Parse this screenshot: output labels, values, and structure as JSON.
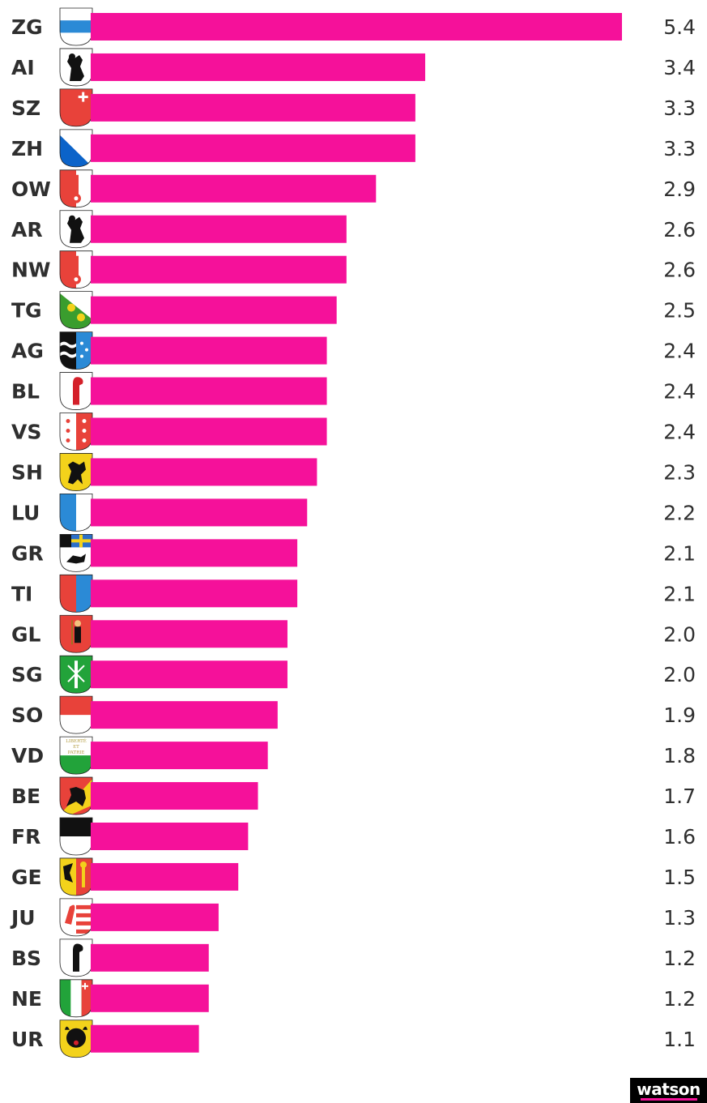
{
  "chart_data": {
    "type": "bar",
    "orientation": "horizontal",
    "categories": [
      "ZG",
      "AI",
      "SZ",
      "ZH",
      "OW",
      "AR",
      "NW",
      "TG",
      "AG",
      "BL",
      "VS",
      "SH",
      "LU",
      "GR",
      "TI",
      "GL",
      "SG",
      "SO",
      "VD",
      "BE",
      "FR",
      "GE",
      "JU",
      "BS",
      "NE",
      "UR"
    ],
    "values": [
      5.4,
      3.4,
      3.3,
      3.3,
      2.9,
      2.6,
      2.6,
      2.5,
      2.4,
      2.4,
      2.4,
      2.3,
      2.2,
      2.1,
      2.1,
      2.0,
      2.0,
      1.9,
      1.8,
      1.7,
      1.6,
      1.5,
      1.3,
      1.2,
      1.2,
      1.1
    ],
    "value_labels": [
      "5.4",
      "3.4",
      "3.3",
      "3.3",
      "2.9",
      "2.6",
      "2.6",
      "2.5",
      "2.4",
      "2.4",
      "2.4",
      "2.3",
      "2.2",
      "2.1",
      "2.1",
      "2.0",
      "2.0",
      "1.9",
      "1.8",
      "1.7",
      "1.6",
      "1.5",
      "1.3",
      "1.2",
      "1.2",
      "1.1"
    ],
    "xlim": [
      0,
      5.4
    ],
    "bar_color": "#f5119a",
    "grid": false,
    "legend": "none"
  },
  "crests": {
    "ZG": {
      "icon": "zug-crest-icon",
      "type": "fess",
      "c1": "#ffffff",
      "c2": "#2b8ad6"
    },
    "AI": {
      "icon": "appenzell-innerrhoden-crest-icon",
      "type": "bear",
      "c1": "#ffffff",
      "c2": "#111111"
    },
    "SZ": {
      "icon": "schwyz-crest-icon",
      "type": "cornercross",
      "c1": "#e8423a",
      "c2": "#ffffff"
    },
    "ZH": {
      "icon": "zurich-crest-icon",
      "type": "diag",
      "c1": "#ffffff",
      "c2": "#0b63c9"
    },
    "OW": {
      "icon": "obwalden-crest-icon",
      "type": "key",
      "c1": "#e8423a",
      "c2": "#ffffff"
    },
    "AR": {
      "icon": "appenzell-ausserrhoden-crest-icon",
      "type": "bear",
      "c1": "#ffffff",
      "c2": "#111111"
    },
    "NW": {
      "icon": "nidwalden-crest-icon",
      "type": "key",
      "c1": "#e8423a",
      "c2": "#ffffff"
    },
    "TG": {
      "icon": "thurgau-crest-icon",
      "type": "diaglions",
      "c1": "#ffffff",
      "c2": "#3a9d2e",
      "c3": "#f3d21b"
    },
    "AG": {
      "icon": "aargau-crest-icon",
      "type": "aargau",
      "c1": "#111111",
      "c2": "#2b8ad6"
    },
    "BL": {
      "icon": "basel-land-crest-icon",
      "type": "staff",
      "c1": "#ffffff",
      "c2": "#d4202a"
    },
    "VS": {
      "icon": "valais-crest-icon",
      "type": "stars",
      "c1": "#ffffff",
      "c2": "#e8423a"
    },
    "SH": {
      "icon": "schaffhausen-crest-icon",
      "type": "ram",
      "c1": "#f3d21b",
      "c2": "#111111"
    },
    "LU": {
      "icon": "lucerne-crest-icon",
      "type": "vsplit",
      "c1": "#2b8ad6",
      "c2": "#ffffff"
    },
    "GR": {
      "icon": "graubuenden-crest-icon",
      "type": "grisons",
      "c1": "#ffffff",
      "c2": "#111111",
      "c3": "#2b6fc9",
      "c4": "#f3d21b"
    },
    "TI": {
      "icon": "ticino-crest-icon",
      "type": "vsplit",
      "c1": "#e8423a",
      "c2": "#2b8ad6"
    },
    "GL": {
      "icon": "glarus-crest-icon",
      "type": "saint",
      "c1": "#e8423a",
      "c2": "#111111"
    },
    "SG": {
      "icon": "st-gallen-crest-icon",
      "type": "fasces",
      "c1": "#22a33a",
      "c2": "#ffffff"
    },
    "SO": {
      "icon": "solothurn-crest-icon",
      "type": "hsplit",
      "c1": "#e8423a",
      "c2": "#ffffff"
    },
    "VD": {
      "icon": "vaud-crest-icon",
      "type": "vaud",
      "c1": "#ffffff",
      "c2": "#22a33a",
      "c3": "#b29a3e"
    },
    "BE": {
      "icon": "bern-crest-icon",
      "type": "bern",
      "c1": "#e8423a",
      "c2": "#f3d21b",
      "c3": "#111111"
    },
    "FR": {
      "icon": "fribourg-crest-icon",
      "type": "hsplit",
      "c1": "#111111",
      "c2": "#ffffff"
    },
    "GE": {
      "icon": "geneva-crest-icon",
      "type": "geneva",
      "c1": "#f3d21b",
      "c2": "#e8423a",
      "c3": "#111111"
    },
    "JU": {
      "icon": "jura-crest-icon",
      "type": "jura",
      "c1": "#ffffff",
      "c2": "#e8423a"
    },
    "BS": {
      "icon": "basel-stadt-crest-icon",
      "type": "staff",
      "c1": "#ffffff",
      "c2": "#111111"
    },
    "NE": {
      "icon": "neuchatel-crest-icon",
      "type": "neuchatel",
      "c1": "#22a33a",
      "c2": "#ffffff",
      "c3": "#e8423a"
    },
    "UR": {
      "icon": "uri-crest-icon",
      "type": "bull",
      "c1": "#f3d21b",
      "c2": "#111111"
    }
  },
  "vaud_motto": [
    "LIBERTÉ",
    "ET",
    "PATRIE"
  ],
  "logo": {
    "text": "watson",
    "accent": "#f5119a"
  }
}
